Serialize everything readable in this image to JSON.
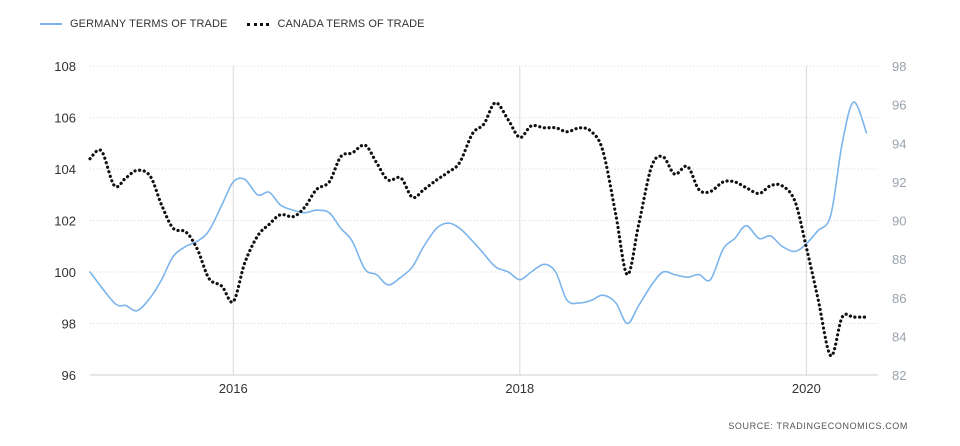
{
  "source_label": "SOURCE:",
  "source_site": "TRADINGECONOMICS.COM",
  "chart_data": {
    "type": "line",
    "y_left_ticks": [
      "108",
      "106",
      "104",
      "102",
      "100",
      "98",
      "96"
    ],
    "y_left_lim": [
      96,
      108
    ],
    "y_right_ticks": [
      "98",
      "96",
      "94",
      "92",
      "90",
      "88",
      "86",
      "84",
      "82"
    ],
    "y_right_lim": [
      82,
      98
    ],
    "x_ticks": [
      "2016",
      "2018",
      "2020"
    ],
    "x_lim": [
      2015.0,
      2020.5
    ],
    "grid": true,
    "legend_position": "top-left",
    "series": [
      {
        "name": "GERMANY TERMS OF TRADE",
        "axis": "left",
        "color": "#7cb5ec",
        "style": "solid",
        "x": [
          2015.0,
          2015.17,
          2015.25,
          2015.33,
          2015.42,
          2015.5,
          2015.58,
          2015.67,
          2015.75,
          2015.83,
          2015.92,
          2016.0,
          2016.08,
          2016.17,
          2016.25,
          2016.33,
          2016.42,
          2016.5,
          2016.58,
          2016.67,
          2016.75,
          2016.83,
          2016.92,
          2017.0,
          2017.08,
          2017.17,
          2017.25,
          2017.33,
          2017.42,
          2017.5,
          2017.58,
          2017.67,
          2017.75,
          2017.83,
          2017.92,
          2018.0,
          2018.08,
          2018.17,
          2018.25,
          2018.33,
          2018.42,
          2018.5,
          2018.58,
          2018.67,
          2018.75,
          2018.83,
          2018.92,
          2019.0,
          2019.08,
          2019.17,
          2019.25,
          2019.33,
          2019.42,
          2019.5,
          2019.58,
          2019.67,
          2019.75,
          2019.83,
          2019.92,
          2020.0,
          2020.08,
          2020.17,
          2020.25,
          2020.33,
          2020.42
        ],
        "values": [
          100.0,
          98.8,
          98.7,
          98.5,
          99.0,
          99.7,
          100.6,
          101.0,
          101.2,
          101.6,
          102.6,
          103.5,
          103.6,
          103.0,
          103.1,
          102.6,
          102.4,
          102.3,
          102.4,
          102.3,
          101.7,
          101.2,
          100.1,
          99.9,
          99.5,
          99.8,
          100.2,
          101.0,
          101.7,
          101.9,
          101.7,
          101.2,
          100.7,
          100.2,
          100.0,
          99.7,
          100.0,
          100.3,
          100.0,
          98.9,
          98.8,
          98.9,
          99.1,
          98.8,
          98.0,
          98.7,
          99.5,
          100.0,
          99.9,
          99.8,
          99.9,
          99.7,
          100.9,
          101.3,
          101.8,
          101.3,
          101.4,
          101.0,
          100.8,
          101.1,
          101.6,
          102.2,
          105.0,
          106.6,
          105.4
        ]
      },
      {
        "name": "CANADA TERMS OF TRADE",
        "axis": "right",
        "color": "#111111",
        "style": "dotted",
        "x": [
          2015.0,
          2015.08,
          2015.17,
          2015.25,
          2015.33,
          2015.42,
          2015.5,
          2015.58,
          2015.67,
          2015.75,
          2015.83,
          2015.92,
          2016.0,
          2016.08,
          2016.17,
          2016.25,
          2016.33,
          2016.42,
          2016.5,
          2016.58,
          2016.67,
          2016.75,
          2016.83,
          2016.92,
          2017.0,
          2017.08,
          2017.17,
          2017.25,
          2017.33,
          2017.42,
          2017.5,
          2017.58,
          2017.67,
          2017.75,
          2017.83,
          2017.92,
          2018.0,
          2018.08,
          2018.17,
          2018.25,
          2018.33,
          2018.42,
          2018.5,
          2018.58,
          2018.67,
          2018.75,
          2018.83,
          2018.92,
          2019.0,
          2019.08,
          2019.17,
          2019.25,
          2019.33,
          2019.42,
          2019.5,
          2019.58,
          2019.67,
          2019.75,
          2019.83,
          2019.92,
          2020.0,
          2020.08,
          2020.17,
          2020.25,
          2020.33,
          2020.42
        ],
        "values": [
          93.2,
          93.6,
          91.8,
          92.2,
          92.6,
          92.3,
          90.8,
          89.6,
          89.4,
          88.5,
          87.0,
          86.6,
          85.8,
          87.8,
          89.2,
          89.8,
          90.3,
          90.2,
          90.7,
          91.6,
          92.0,
          93.3,
          93.5,
          93.9,
          93.0,
          92.1,
          92.2,
          91.2,
          91.6,
          92.1,
          92.5,
          93.0,
          94.5,
          95.0,
          96.1,
          95.2,
          94.3,
          94.9,
          94.8,
          94.8,
          94.6,
          94.8,
          94.6,
          93.6,
          90.3,
          87.2,
          89.8,
          92.8,
          93.3,
          92.4,
          92.8,
          91.6,
          91.5,
          92.0,
          92.0,
          91.7,
          91.4,
          91.8,
          91.8,
          91.0,
          88.6,
          86.0,
          83.0,
          85.0,
          85.0,
          85.0
        ]
      }
    ]
  }
}
